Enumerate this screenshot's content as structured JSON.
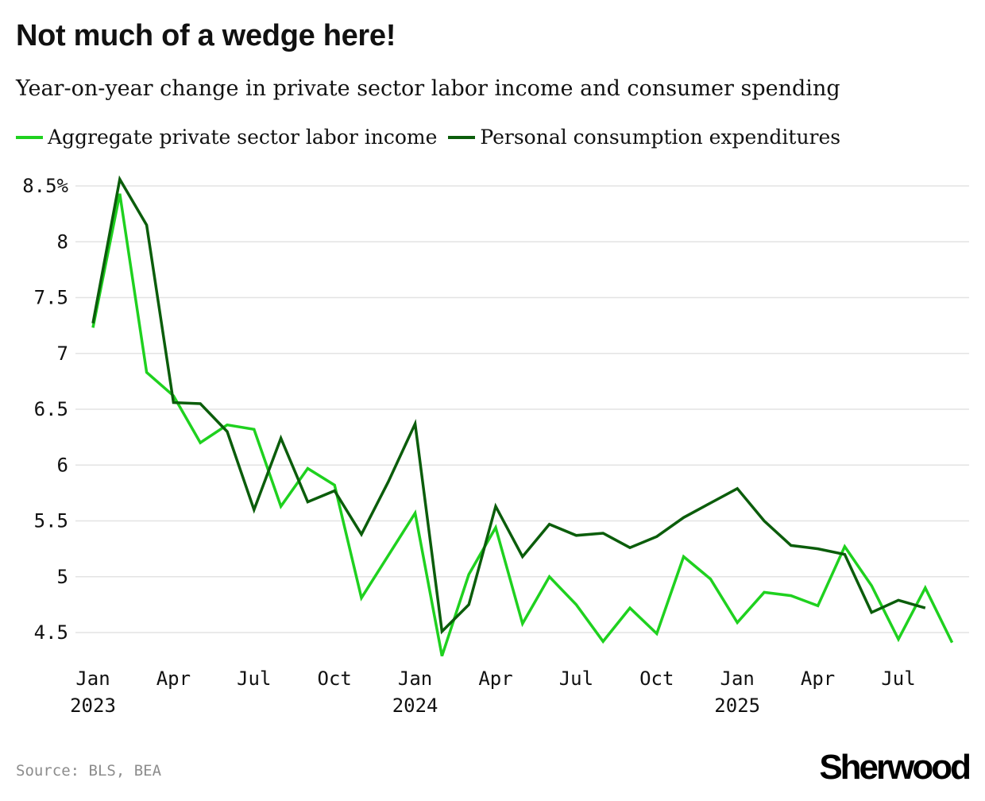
{
  "colors": {
    "labor_income": "#1fd11f",
    "consumption": "#0b5d0b",
    "grid": "#e3e3e3",
    "text": "#111111",
    "source": "#8c8c8c"
  },
  "chart_data": {
    "type": "line",
    "title": "Not much of a wedge here!",
    "subtitle": "Year-on-year change in private sector labor income and consumer spending",
    "xlabel": "",
    "ylabel": "",
    "ylim": [
      4.3,
      8.6
    ],
    "y_ticks": [
      {
        "value": 8.5,
        "label": "8.5%"
      },
      {
        "value": 8,
        "label": "8"
      },
      {
        "value": 7.5,
        "label": "7.5"
      },
      {
        "value": 7,
        "label": "7"
      },
      {
        "value": 6.5,
        "label": "6.5"
      },
      {
        "value": 6,
        "label": "6"
      },
      {
        "value": 5.5,
        "label": "5.5"
      },
      {
        "value": 5,
        "label": "5"
      },
      {
        "value": 4.5,
        "label": "4.5"
      }
    ],
    "x_ticks": [
      {
        "month": "2023-01",
        "label": "Jan",
        "year": "2023"
      },
      {
        "month": "2023-04",
        "label": "Apr",
        "year": ""
      },
      {
        "month": "2023-07",
        "label": "Jul",
        "year": ""
      },
      {
        "month": "2023-10",
        "label": "Oct",
        "year": ""
      },
      {
        "month": "2024-01",
        "label": "Jan",
        "year": "2024"
      },
      {
        "month": "2024-04",
        "label": "Apr",
        "year": ""
      },
      {
        "month": "2024-07",
        "label": "Jul",
        "year": ""
      },
      {
        "month": "2024-10",
        "label": "Oct",
        "year": ""
      },
      {
        "month": "2025-01",
        "label": "Jan",
        "year": "2025"
      },
      {
        "month": "2025-04",
        "label": "Apr",
        "year": ""
      },
      {
        "month": "2025-07",
        "label": "Jul",
        "year": ""
      }
    ],
    "x": [
      "2023-01",
      "2023-02",
      "2023-03",
      "2023-04",
      "2023-05",
      "2023-06",
      "2023-07",
      "2023-08",
      "2023-09",
      "2023-10",
      "2023-11",
      "2023-12",
      "2024-01",
      "2024-02",
      "2024-03",
      "2024-04",
      "2024-05",
      "2024-06",
      "2024-07",
      "2024-08",
      "2024-09",
      "2024-10",
      "2024-11",
      "2024-12",
      "2025-01",
      "2025-02",
      "2025-03",
      "2025-04",
      "2025-05",
      "2025-06",
      "2025-07",
      "2025-08",
      "2025-09"
    ],
    "series": [
      {
        "name": "Aggregate private sector labor income",
        "color": "#1fd11f",
        "values": [
          7.23,
          8.43,
          6.83,
          6.62,
          6.2,
          6.36,
          6.32,
          5.63,
          5.97,
          5.82,
          4.81,
          5.19,
          5.57,
          4.29,
          5.02,
          5.44,
          4.58,
          5.0,
          4.75,
          4.42,
          4.72,
          4.49,
          5.18,
          4.98,
          4.59,
          4.86,
          4.83,
          4.74,
          5.27,
          4.92,
          4.44,
          4.9,
          4.41
        ]
      },
      {
        "name": "Personal consumption expenditures",
        "color": "#0b5d0b",
        "values": [
          7.27,
          8.56,
          8.15,
          6.56,
          6.55,
          6.3,
          5.6,
          6.24,
          5.67,
          5.77,
          5.38,
          5.85,
          6.37,
          4.51,
          4.75,
          5.63,
          5.18,
          5.47,
          5.37,
          5.39,
          5.26,
          5.36,
          5.53,
          5.66,
          5.79,
          5.5,
          5.28,
          5.25,
          5.2,
          4.68,
          4.79,
          4.72,
          null
        ]
      }
    ],
    "grid": true,
    "legend_position": "top-left",
    "source": "Source: BLS, BEA"
  },
  "brand": "Sherwood"
}
